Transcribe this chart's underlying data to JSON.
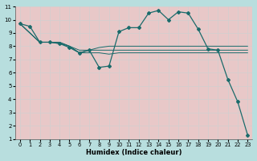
{
  "xlabel": "Humidex (Indice chaleur)",
  "bg_color": "#b8dede",
  "grid_color": "#e8c8c8",
  "line_color": "#1a6b6b",
  "xlim": [
    -0.5,
    23.5
  ],
  "ylim": [
    1,
    11
  ],
  "xticks": [
    0,
    1,
    2,
    3,
    4,
    5,
    6,
    7,
    8,
    9,
    10,
    11,
    12,
    13,
    14,
    15,
    16,
    17,
    18,
    19,
    20,
    21,
    22,
    23
  ],
  "yticks": [
    1,
    2,
    3,
    4,
    5,
    6,
    7,
    8,
    9,
    10,
    11
  ],
  "s1_x": [
    0,
    1,
    2,
    3,
    4,
    5,
    6,
    7,
    8,
    9,
    10,
    11,
    12,
    13,
    14,
    15,
    16,
    17,
    18,
    19,
    20,
    21,
    22,
    23
  ],
  "s1_y": [
    9.7,
    9.5,
    8.3,
    8.3,
    8.2,
    7.9,
    7.5,
    7.7,
    6.4,
    6.5,
    9.1,
    9.4,
    9.4,
    10.5,
    10.7,
    10.0,
    10.6,
    10.5,
    9.3,
    7.8,
    7.7,
    5.5,
    3.8,
    1.3
  ],
  "s2_x": [
    0,
    2,
    3,
    4,
    5,
    6,
    7,
    8,
    9,
    10,
    11,
    12,
    13,
    14,
    15,
    16,
    17,
    18,
    19,
    20,
    21,
    22,
    23
  ],
  "s2_y": [
    9.7,
    8.3,
    8.3,
    8.3,
    8.0,
    7.7,
    7.7,
    7.9,
    8.0,
    8.0,
    8.0,
    8.0,
    8.0,
    8.0,
    8.0,
    8.0,
    8.0,
    8.0,
    8.0,
    8.0,
    8.0,
    8.0,
    8.0
  ],
  "s3_x": [
    0,
    2,
    3,
    4,
    5,
    6,
    7,
    8,
    9,
    10,
    11,
    12,
    13,
    14,
    15,
    16,
    17,
    18,
    19,
    20,
    21,
    22,
    23
  ],
  "s3_y": [
    9.7,
    8.3,
    8.3,
    8.3,
    8.0,
    7.5,
    7.7,
    7.7,
    7.7,
    7.7,
    7.7,
    7.7,
    7.7,
    7.7,
    7.7,
    7.7,
    7.7,
    7.7,
    7.7,
    7.7,
    7.7,
    7.7,
    7.7
  ],
  "s4_x": [
    0,
    2,
    3,
    4,
    5,
    6,
    7,
    8,
    9,
    10,
    11,
    12,
    13,
    14,
    15,
    16,
    17,
    18,
    19,
    20,
    21,
    22,
    23
  ],
  "s4_y": [
    9.7,
    8.3,
    8.3,
    8.2,
    8.0,
    7.5,
    7.5,
    7.5,
    7.4,
    7.5,
    7.5,
    7.5,
    7.5,
    7.5,
    7.5,
    7.5,
    7.5,
    7.5,
    7.5,
    7.5,
    7.5,
    7.5,
    7.5
  ]
}
